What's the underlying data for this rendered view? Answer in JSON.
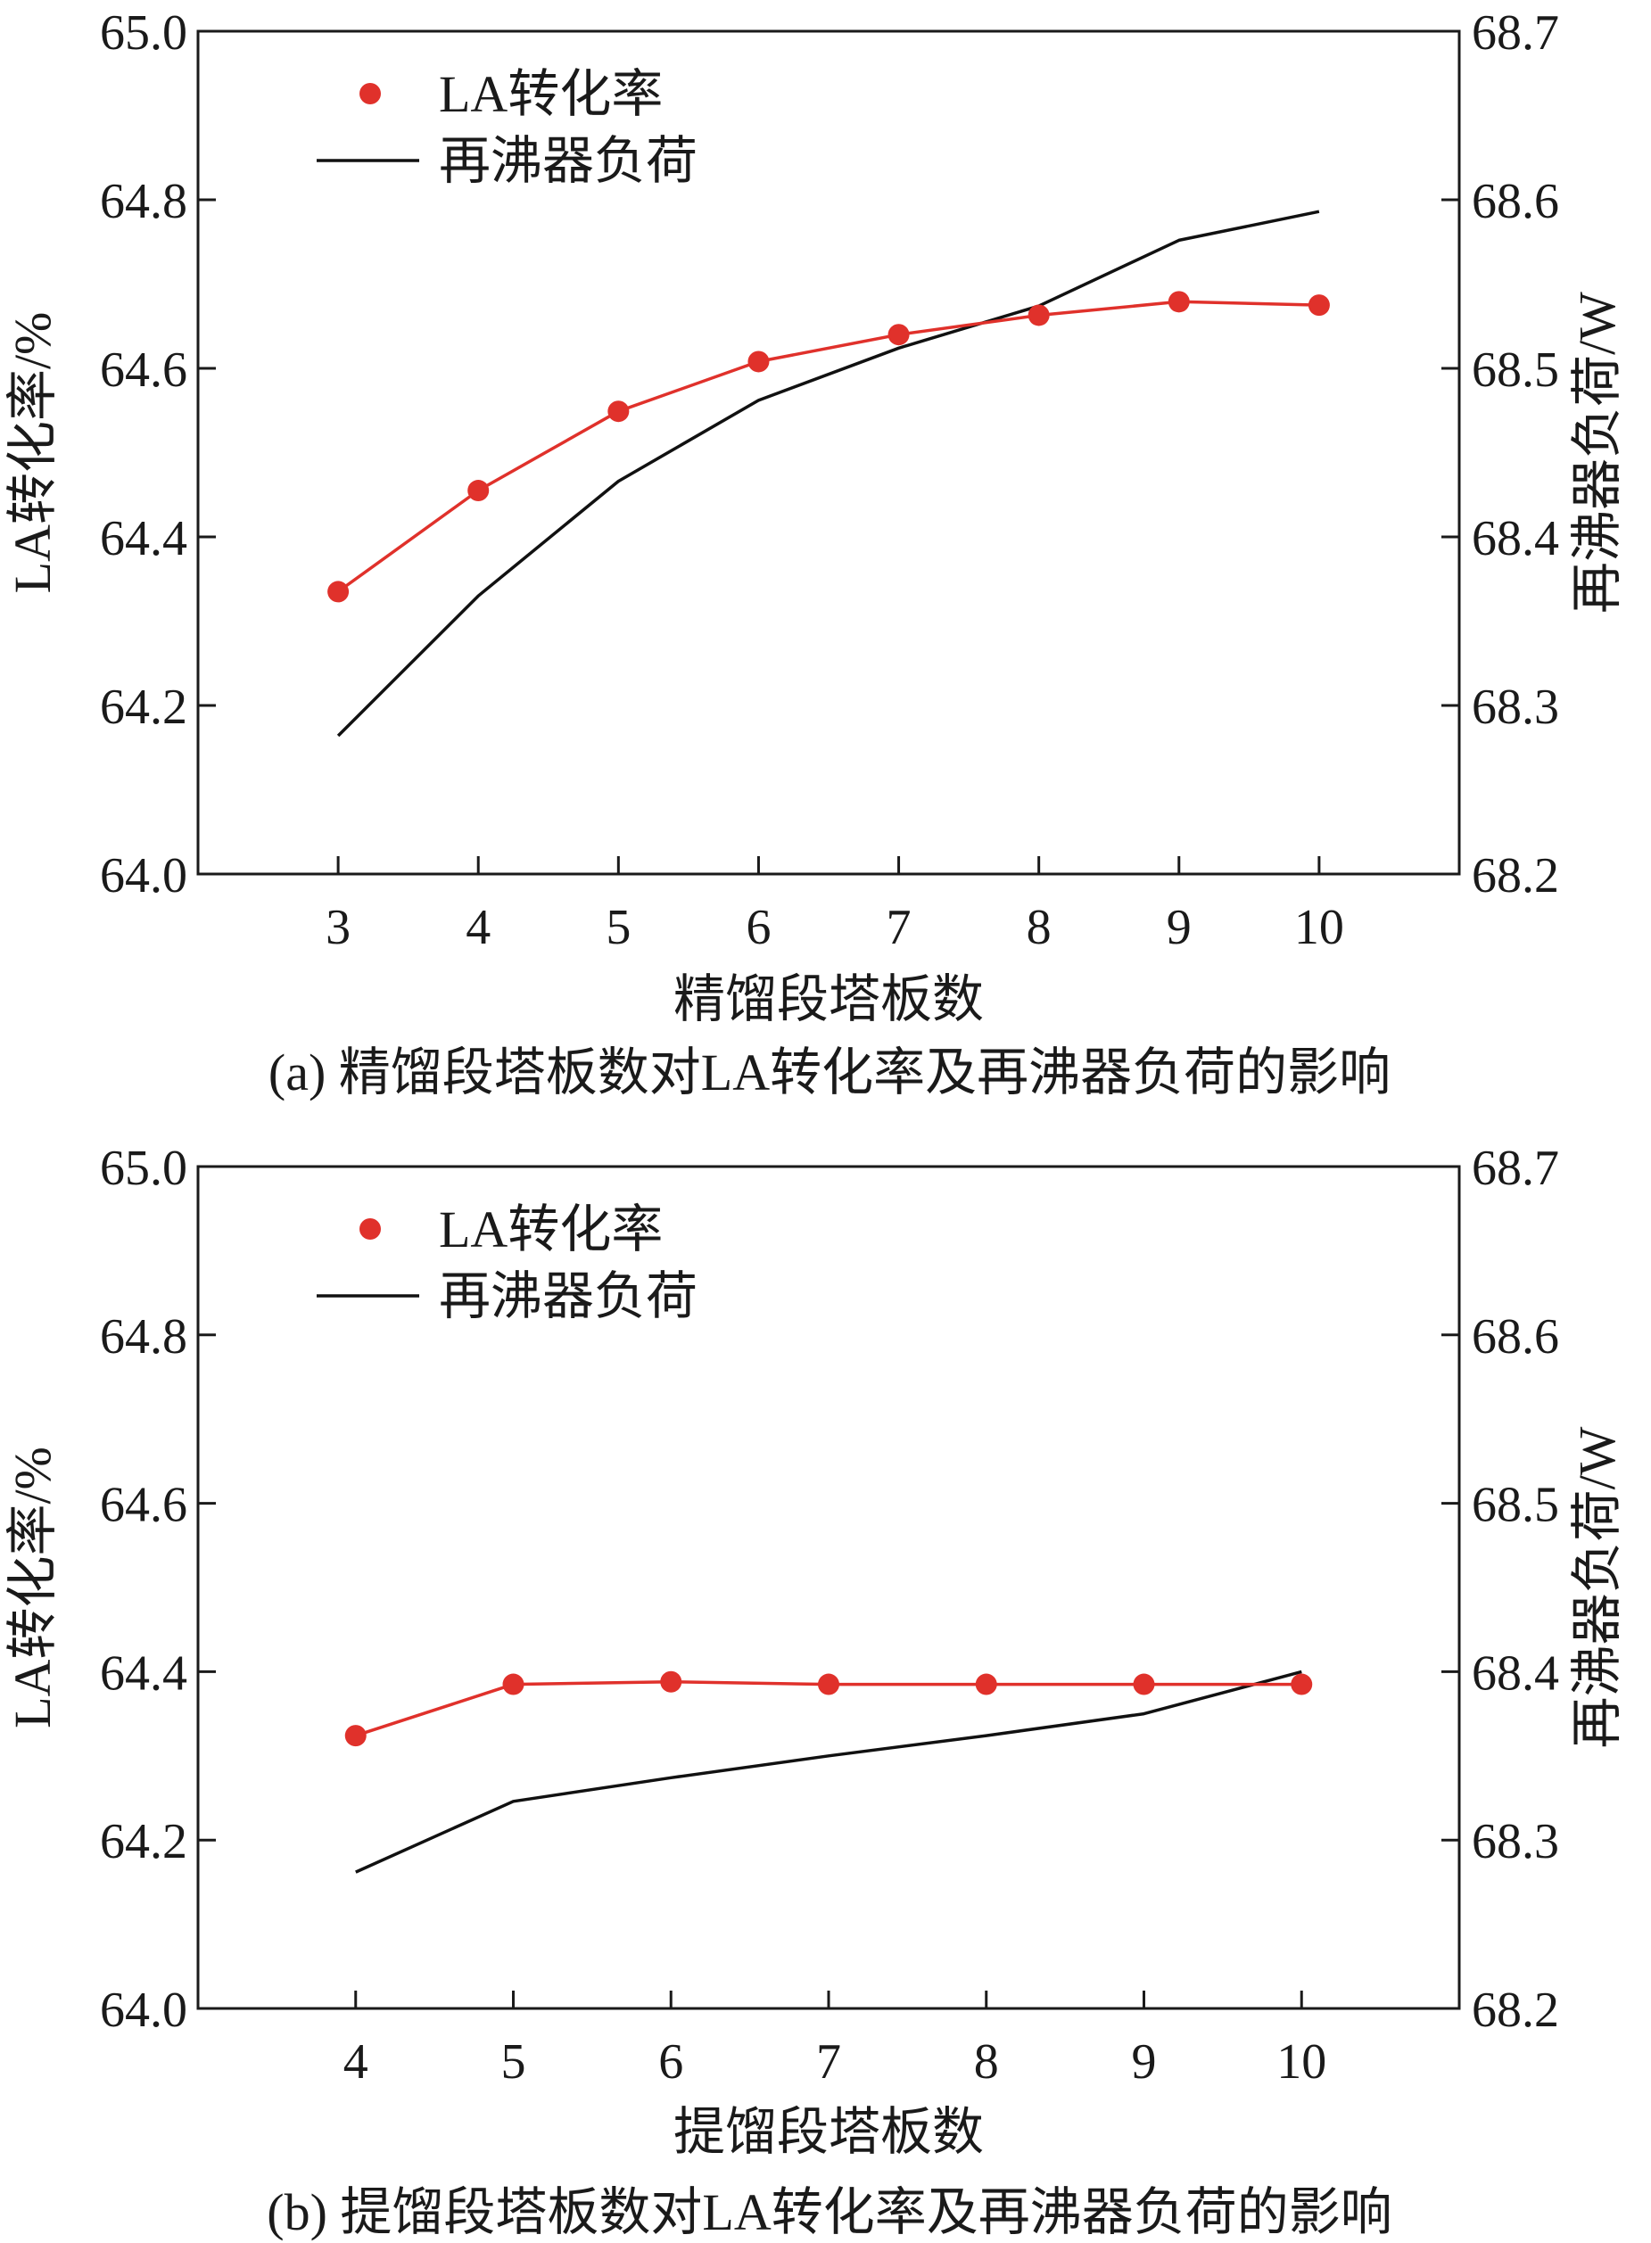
{
  "colors": {
    "conversion": "#e0312b",
    "reboiler": "#111111",
    "axis": "#1a1a1a"
  },
  "chart_data": [
    {
      "type": "line",
      "panel": "a",
      "caption": "(a) 精馏段塔板数对LA转化率及再沸器负荷的影响",
      "xlabel": "精馏段塔板数",
      "ylabel": "LA转化率/%",
      "y2label": "再沸器负荷/W",
      "x": [
        3,
        4,
        5,
        6,
        7,
        8,
        9,
        10
      ],
      "xlim": [
        2,
        11
      ],
      "xticks": [
        "3",
        "4",
        "5",
        "6",
        "7",
        "8",
        "9",
        "10"
      ],
      "ylim": [
        64.0,
        65.0
      ],
      "yticks": [
        "64.0",
        "64.2",
        "64.4",
        "64.6",
        "64.8",
        "65.0"
      ],
      "y2lim": [
        68.2,
        68.7
      ],
      "y2ticks": [
        "68.2",
        "68.3",
        "68.4",
        "68.5",
        "68.6",
        "68.7"
      ],
      "legend": {
        "placement": "top-left",
        "entries": [
          "LA转化率",
          "再沸器负荷"
        ]
      },
      "series": [
        {
          "name": "LA转化率",
          "axis": "left",
          "style": "line+markers",
          "values": [
            64.335,
            64.455,
            64.549,
            64.608,
            64.64,
            64.663,
            64.679,
            64.675
          ]
        },
        {
          "name": "再沸器负荷",
          "axis": "right",
          "style": "line",
          "values": [
            68.282,
            68.365,
            68.433,
            68.481,
            68.512,
            68.537,
            68.576,
            68.593
          ]
        }
      ]
    },
    {
      "type": "line",
      "panel": "b",
      "caption": "(b) 提馏段塔板数对LA转化率及再沸器负荷的影响",
      "xlabel": "提馏段塔板数",
      "ylabel": "LA转化率/%",
      "y2label": "再沸器负荷/W",
      "x": [
        4,
        5,
        6,
        7,
        8,
        9,
        10
      ],
      "xlim": [
        3,
        11
      ],
      "xticks": [
        "4",
        "5",
        "6",
        "7",
        "8",
        "9",
        "10"
      ],
      "ylim": [
        64.0,
        65.0
      ],
      "yticks": [
        "64.0",
        "64.2",
        "64.4",
        "64.6",
        "64.8",
        "65.0"
      ],
      "y2lim": [
        68.2,
        68.7
      ],
      "y2ticks": [
        "68.2",
        "68.3",
        "68.4",
        "68.5",
        "68.6",
        "68.7"
      ],
      "legend": {
        "placement": "top-left",
        "entries": [
          "LA转化率",
          "再沸器负荷"
        ]
      },
      "series": [
        {
          "name": "LA转化率",
          "axis": "left",
          "style": "line+markers",
          "values": [
            64.324,
            64.385,
            64.388,
            64.385,
            64.385,
            64.385,
            64.385
          ]
        },
        {
          "name": "再沸器负荷",
          "axis": "right",
          "style": "line",
          "values": [
            68.281,
            68.323,
            68.337,
            68.35,
            68.362,
            68.375,
            68.4
          ]
        }
      ]
    }
  ]
}
